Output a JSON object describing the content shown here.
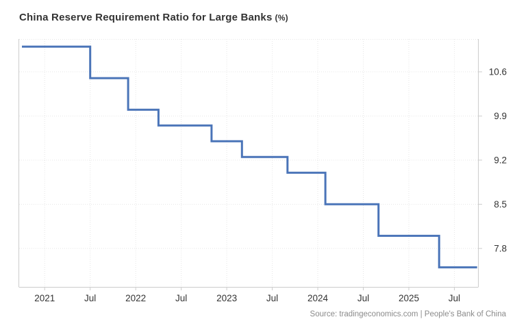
{
  "title": {
    "main": "China Reserve Requirement Ratio for Large Banks",
    "unit": "(%)"
  },
  "source": "Source: tradingeconomics.com | People's Bank of China",
  "colors": {
    "line": "#4a74b8",
    "grid": "#e6e6e6",
    "border": "#cccccc",
    "tick": "#cccccc",
    "axis_label": "#333333",
    "title": "#333333",
    "source_text": "#8a8a8a",
    "background": "#ffffff"
  },
  "chart_data": {
    "type": "line",
    "step": "left",
    "title": "China Reserve Requirement Ratio for Large Banks (%)",
    "xlabel": "",
    "ylabel": "",
    "grid": true,
    "legend": false,
    "xlim": [
      2020.72,
      2025.76
    ],
    "ylim": [
      7.19,
      11.12
    ],
    "x_ticks": [
      {
        "pos": 2021.0,
        "label": "2021"
      },
      {
        "pos": 2021.5,
        "label": "Jul"
      },
      {
        "pos": 2022.0,
        "label": "2022"
      },
      {
        "pos": 2022.5,
        "label": "Jul"
      },
      {
        "pos": 2023.0,
        "label": "2023"
      },
      {
        "pos": 2023.5,
        "label": "Jul"
      },
      {
        "pos": 2024.0,
        "label": "2024"
      },
      {
        "pos": 2024.5,
        "label": "Jul"
      },
      {
        "pos": 2025.0,
        "label": "2025"
      },
      {
        "pos": 2025.5,
        "label": "Jul"
      }
    ],
    "y_ticks": [
      {
        "pos": 10.6,
        "label": "10.6"
      },
      {
        "pos": 9.9,
        "label": "9.9"
      },
      {
        "pos": 9.2,
        "label": "9.2"
      },
      {
        "pos": 8.5,
        "label": "8.5"
      },
      {
        "pos": 7.8,
        "label": "7.8"
      }
    ],
    "series": [
      {
        "name": "China Reserve Requirement Ratio for Large Banks",
        "color": "#4a74b8",
        "points": [
          {
            "x": 2020.75,
            "date": "Oct 2020",
            "value": 11.0
          },
          {
            "x": 2021.5,
            "date": "Jul 2021",
            "value": 10.5
          },
          {
            "x": 2021.917,
            "date": "Dec 2021",
            "value": 10.0
          },
          {
            "x": 2022.25,
            "date": "Apr 2022",
            "value": 9.75
          },
          {
            "x": 2022.833,
            "date": "Nov 2022",
            "value": 9.5
          },
          {
            "x": 2023.167,
            "date": "Mar 2023",
            "value": 9.25
          },
          {
            "x": 2023.667,
            "date": "Sep 2023",
            "value": 9.0
          },
          {
            "x": 2024.083,
            "date": "Feb 2024",
            "value": 8.5
          },
          {
            "x": 2024.667,
            "date": "Sep 2024",
            "value": 8.0
          },
          {
            "x": 2025.333,
            "date": "May 2025",
            "value": 7.5
          },
          {
            "x": 2025.75,
            "date": "Oct 2025",
            "value": 7.5
          }
        ]
      }
    ]
  }
}
